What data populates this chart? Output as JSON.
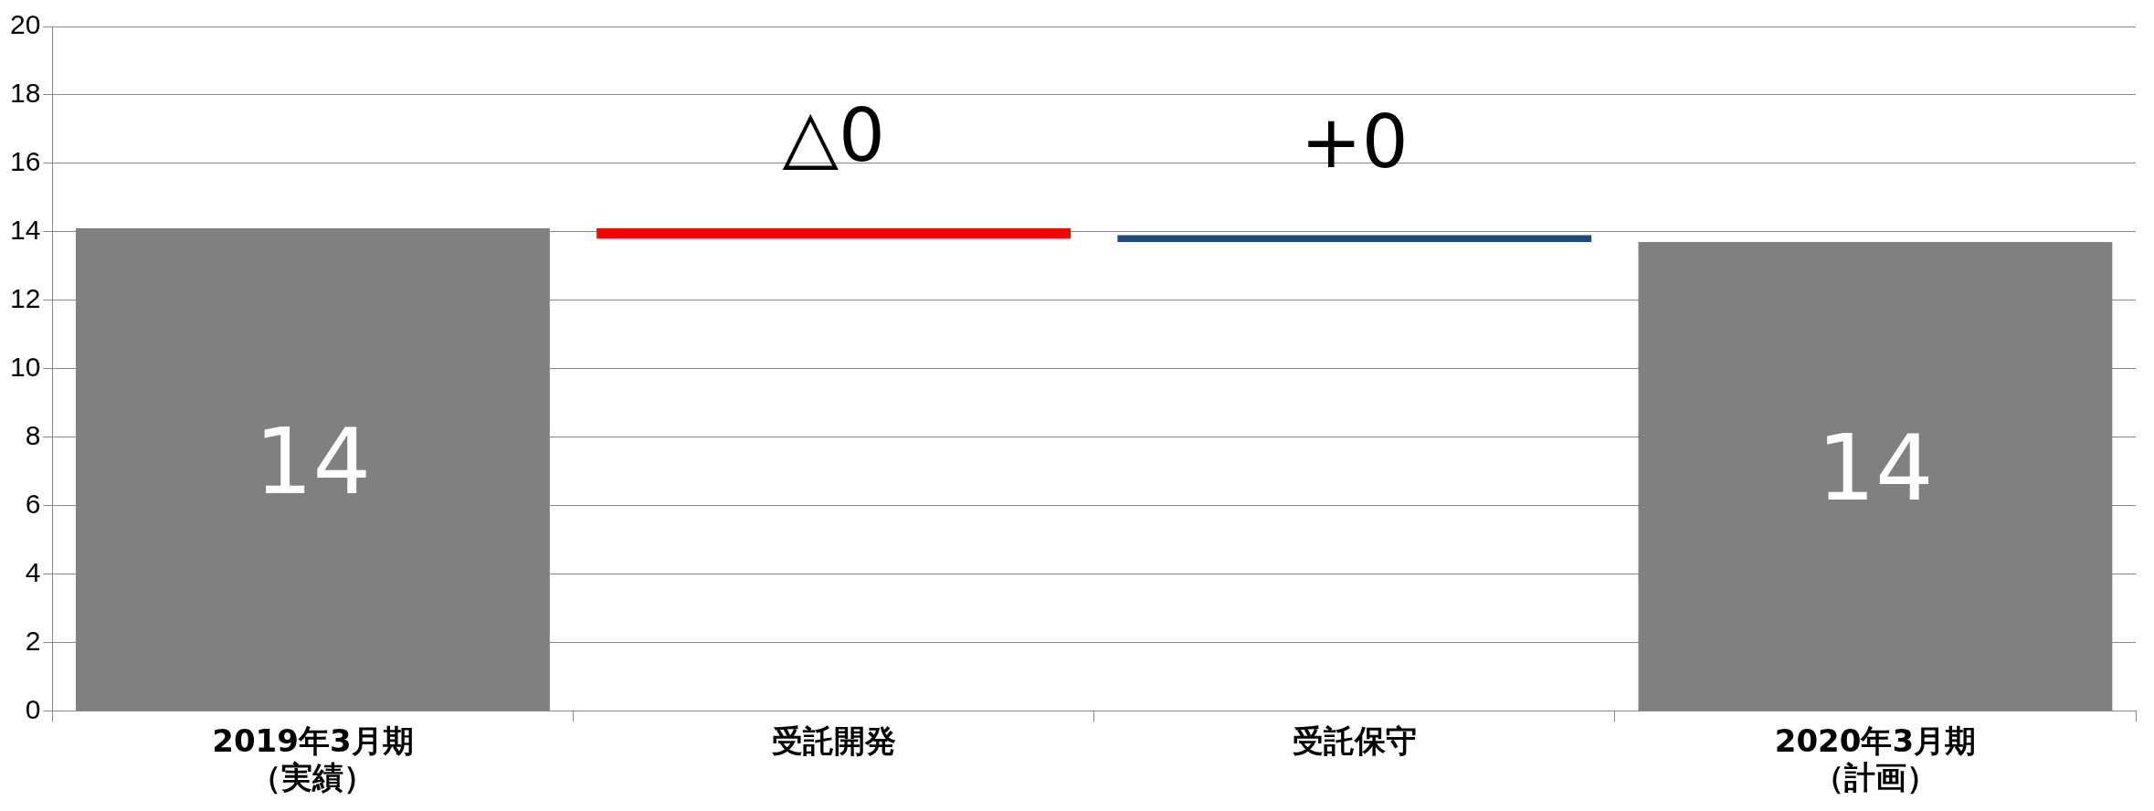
{
  "chart_data": {
    "type": "bar",
    "categories": [
      "2019年3月期（実績）",
      "受託開発",
      "受託保守",
      "2020年3月期（計画）"
    ],
    "values": [
      14.1,
      -0.3,
      0.2,
      13.7
    ],
    "base": [
      0,
      14.1,
      13.7,
      0
    ],
    "colors": [
      "#808080",
      "#ff0000",
      "#1f497d",
      "#808080"
    ],
    "value_labels": [
      "14",
      "△0",
      "+0",
      "14"
    ],
    "ylim": [
      0,
      20
    ],
    "yticks": [
      0,
      2,
      4,
      6,
      8,
      10,
      12,
      14,
      16,
      18,
      20
    ],
    "grid": "y",
    "legend": false
  }
}
